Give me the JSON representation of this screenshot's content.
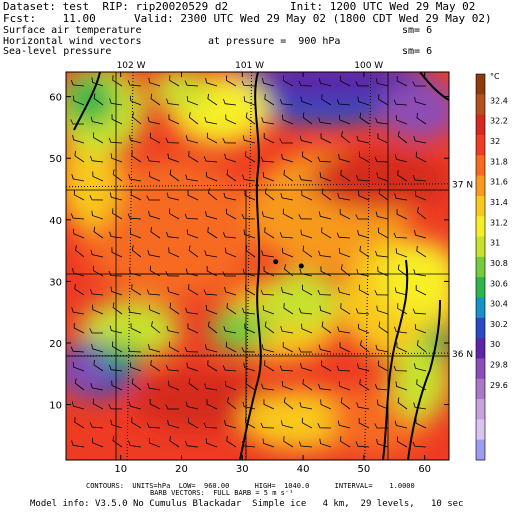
{
  "header": {
    "dataset_line": "Dataset: test  RIP: rip20020529 d2",
    "init_line": "Init: 1200 UTC Wed 29 May 02",
    "fcst_line": "Fcst:    11.00",
    "valid_line": "Valid: 2300 UTC Wed 29 May 02 (1800 CDT Wed 29 May 02)",
    "field1": "Surface air temperature",
    "field1_sm": "sm= 6",
    "field2": "Horizontal wind vectors",
    "field2_pressure": "at pressure =  900 hPa",
    "field3": "Sea-level pressure",
    "field3_sm": "sm= 6"
  },
  "map": {
    "longitude_labels": [
      {
        "text": "102 W",
        "x": 11.7
      },
      {
        "text": "101 W",
        "x": 31.2
      },
      {
        "text": "100 W",
        "x": 50.8
      }
    ],
    "latitude_labels": [
      {
        "text": "37 N",
        "y": 45.7
      },
      {
        "text": "36 N",
        "y": 18.2
      }
    ],
    "x_ticks": [
      10,
      20,
      30,
      40,
      50,
      60
    ],
    "y_ticks": [
      10,
      20,
      30,
      40,
      50,
      60
    ],
    "x_range": [
      1,
      64
    ],
    "y_range": [
      1,
      64
    ],
    "stations": [
      {
        "x": 35.5,
        "y": 33.2
      },
      {
        "x": 39.7,
        "y": 32.5
      }
    ]
  },
  "colorbar": {
    "unit": "°C",
    "labels": [
      "32.4",
      "32.2",
      "32",
      "31.8",
      "31.6",
      "31.4",
      "31.2",
      "31",
      "30.8",
      "30.6",
      "30.4",
      "30.2",
      "30",
      "29.8",
      "29.6"
    ],
    "colors": [
      "#8a3c10",
      "#b4501e",
      "#d4291f",
      "#ee3b24",
      "#f66a21",
      "#f79a1f",
      "#f8c81f",
      "#f7ee28",
      "#c7e12d",
      "#76cb3d",
      "#2fb44c",
      "#1890c8",
      "#2a4bc2",
      "#5b26a8",
      "#8d4db6",
      "#a979c8",
      "#c6a3dc",
      "#d8c4ee",
      "#9b9cf0"
    ]
  },
  "footer": {
    "contours": "CONTOURS:  UNITS=hPa  LOW=  960.00      HIGH=  1040.0      INTERVAL=    1.0000",
    "barbs": "BARB VECTORS:  FULL BARB = 5 m s⁻¹",
    "model": "Model info: V3.5.0 No Cumulus Blackadar  Simple ice   4 km,  29 levels,   10 sec"
  }
}
